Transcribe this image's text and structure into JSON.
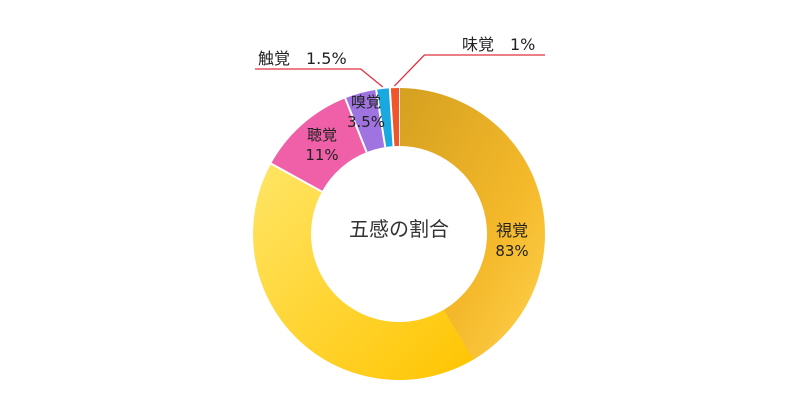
{
  "chart_data": {
    "type": "pie",
    "style": "donut",
    "title": "五感の割合",
    "slices": [
      {
        "label": "視覚",
        "value": 83,
        "display": "83%",
        "color": "#FFB300",
        "label_color": "#222222"
      },
      {
        "label": "聴覚",
        "value": 11,
        "display": "11%",
        "color": "#F060A8",
        "label_color": "#222222"
      },
      {
        "label": "嗅覚",
        "value": 3.5,
        "display": "3.5%",
        "color": "#9F74E0",
        "label_color": "#222222"
      },
      {
        "label": "触覚",
        "value": 1.5,
        "display": "1.5%",
        "color": "#19A9E0",
        "label_color": "#222222"
      },
      {
        "label": "味覚",
        "value": 1,
        "display": "1%",
        "color": "#F0562A",
        "label_color": "#222222"
      }
    ],
    "callouts": {
      "触覚": "触覚　1.5%",
      "味覚": "味覚　1%"
    },
    "callout_line_color": "#E03040"
  }
}
